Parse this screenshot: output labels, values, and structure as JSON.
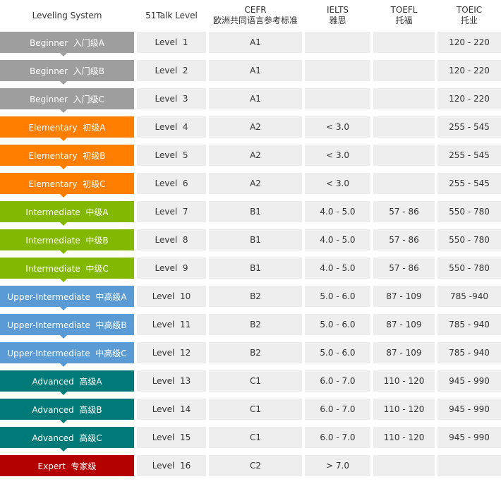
{
  "headers": {
    "system": "Leveling System",
    "level": "51Talk Level",
    "cefr": "CEFR",
    "cefr_cn": "欧洲共同语言参考标准",
    "ielts": "IELTS",
    "ielts_cn": "雅思",
    "toefl": "TOEFL",
    "toefl_cn": "托福",
    "toeic": "TOEIC",
    "toeic_cn": "托业"
  },
  "colors": {
    "beginner": "#9e9e9e",
    "elementary": "#ff7e00",
    "intermediate": "#82b900",
    "upper": "#5b9bd5",
    "advanced": "#007a78",
    "expert": "#b50000",
    "cell_bg": "#eeeeee"
  },
  "rows": [
    {
      "system": "Beginner  入门级A",
      "color": "#9e9e9e",
      "level": "Level  1",
      "cefr": "A1",
      "ielts": "",
      "toefl": "",
      "toeic": "120 - 220"
    },
    {
      "system": "Beginner  入门级B",
      "color": "#9e9e9e",
      "level": "Level  2",
      "cefr": "A1",
      "ielts": "",
      "toefl": "",
      "toeic": "120 - 220"
    },
    {
      "system": "Beginner  入门级C",
      "color": "#9e9e9e",
      "level": "Level  3",
      "cefr": "A1",
      "ielts": "",
      "toefl": "",
      "toeic": "120 - 220"
    },
    {
      "system": "Elementary  初级A",
      "color": "#ff7e00",
      "level": "Level  4",
      "cefr": "A2",
      "ielts": "< 3.0",
      "toefl": "",
      "toeic": "255 - 545"
    },
    {
      "system": "Elementary  初级B",
      "color": "#ff7e00",
      "level": "Level  5",
      "cefr": "A2",
      "ielts": "< 3.0",
      "toefl": "",
      "toeic": "255 - 545"
    },
    {
      "system": "Elementary  初级C",
      "color": "#ff7e00",
      "level": "Level  6",
      "cefr": "A2",
      "ielts": "< 3.0",
      "toefl": "",
      "toeic": "255 - 545"
    },
    {
      "system": "Intermediate  中级A",
      "color": "#82b900",
      "level": "Level  7",
      "cefr": "B1",
      "ielts": "4.0 - 5.0",
      "toefl": "57 - 86",
      "toeic": "550 - 780"
    },
    {
      "system": "Intermediate  中级B",
      "color": "#82b900",
      "level": "Level  8",
      "cefr": "B1",
      "ielts": "4.0 - 5.0",
      "toefl": "57 - 86",
      "toeic": "550 - 780"
    },
    {
      "system": "Intermediate  中级C",
      "color": "#82b900",
      "level": "Level  9",
      "cefr": "B1",
      "ielts": "4.0 - 5.0",
      "toefl": "57 - 86",
      "toeic": "550 - 780"
    },
    {
      "system": "Upper-Intermediate  中高级A",
      "color": "#5b9bd5",
      "level": "Level  10",
      "cefr": "B2",
      "ielts": "5.0 - 6.0",
      "toefl": "87 - 109",
      "toeic": "785 -940"
    },
    {
      "system": "Upper-Intermediate  中高级B",
      "color": "#5b9bd5",
      "level": "Level  11",
      "cefr": "B2",
      "ielts": "5.0 - 6.0",
      "toefl": "87 - 109",
      "toeic": "785 - 940"
    },
    {
      "system": "Upper-Intermediate  中高级C",
      "color": "#5b9bd5",
      "level": "Level  12",
      "cefr": "B2",
      "ielts": "5.0 - 6.0",
      "toefl": "87 - 109",
      "toeic": "785 - 940"
    },
    {
      "system": "Advanced  高级A",
      "color": "#007a78",
      "level": "Level  13",
      "cefr": "C1",
      "ielts": "6.0 - 7.0",
      "toefl": "110 - 120",
      "toeic": "945 - 990"
    },
    {
      "system": "Advanced  高级B",
      "color": "#007a78",
      "level": "Level  14",
      "cefr": "C1",
      "ielts": "6.0 - 7.0",
      "toefl": "110 - 120",
      "toeic": "945 - 990"
    },
    {
      "system": "Advanced  高级C",
      "color": "#007a78",
      "level": "Level  15",
      "cefr": "C1",
      "ielts": "6.0 - 7.0",
      "toefl": "110 - 120",
      "toeic": "945 - 990"
    },
    {
      "system": "Expert  专家级",
      "color": "#b50000",
      "level": "Level  16",
      "cefr": "C2",
      "ielts": "> 7.0",
      "toefl": "",
      "toeic": ""
    }
  ]
}
